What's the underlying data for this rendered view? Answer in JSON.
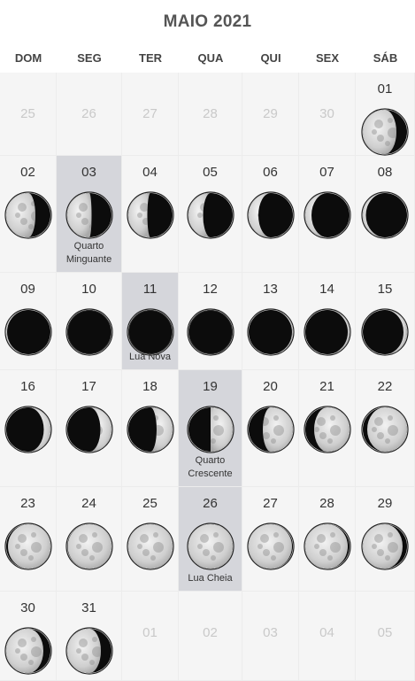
{
  "calendar": {
    "title": "MAIO 2021",
    "weekdays": [
      "DOM",
      "SEG",
      "TER",
      "QUA",
      "QUI",
      "SEX",
      "SÁB"
    ],
    "days": [
      {
        "day": "25",
        "other_month": true
      },
      {
        "day": "26",
        "other_month": true
      },
      {
        "day": "27",
        "other_month": true
      },
      {
        "day": "28",
        "other_month": true
      },
      {
        "day": "29",
        "other_month": true
      },
      {
        "day": "30",
        "other_month": true
      },
      {
        "day": "01",
        "illumination": 0.76,
        "waxing": false
      },
      {
        "day": "02",
        "illumination": 0.66,
        "waxing": false
      },
      {
        "day": "03",
        "illumination": 0.55,
        "waxing": false,
        "phase_label": "Quarto Minguante",
        "highlight": true
      },
      {
        "day": "04",
        "illumination": 0.43,
        "waxing": false
      },
      {
        "day": "05",
        "illumination": 0.33,
        "waxing": false
      },
      {
        "day": "06",
        "illumination": 0.22,
        "waxing": false
      },
      {
        "day": "07",
        "illumination": 0.14,
        "waxing": false
      },
      {
        "day": "08",
        "illumination": 0.07,
        "waxing": false
      },
      {
        "day": "09",
        "illumination": 0.02,
        "waxing": false
      },
      {
        "day": "10",
        "illumination": 0.0,
        "waxing": false
      },
      {
        "day": "11",
        "illumination": 0.0,
        "waxing": true,
        "phase_label": "Lua Nova",
        "highlight": true
      },
      {
        "day": "12",
        "illumination": 0.0,
        "waxing": true
      },
      {
        "day": "13",
        "illumination": 0.02,
        "waxing": true
      },
      {
        "day": "14",
        "illumination": 0.04,
        "waxing": true
      },
      {
        "day": "15",
        "illumination": 0.08,
        "waxing": true
      },
      {
        "day": "16",
        "illumination": 0.15,
        "waxing": true
      },
      {
        "day": "17",
        "illumination": 0.25,
        "waxing": true
      },
      {
        "day": "18",
        "illumination": 0.36,
        "waxing": true
      },
      {
        "day": "19",
        "illumination": 0.5,
        "waxing": true,
        "phase_label": "Quarto Crescente",
        "highlight": true
      },
      {
        "day": "20",
        "illumination": 0.68,
        "waxing": true
      },
      {
        "day": "21",
        "illumination": 0.8,
        "waxing": true
      },
      {
        "day": "22",
        "illumination": 0.9,
        "waxing": true
      },
      {
        "day": "23",
        "illumination": 0.96,
        "waxing": true
      },
      {
        "day": "24",
        "illumination": 0.99,
        "waxing": true
      },
      {
        "day": "25",
        "illumination": 1.0,
        "waxing": true
      },
      {
        "day": "26",
        "illumination": 1.0,
        "waxing": false,
        "phase_label": "Lua Cheia",
        "highlight": true
      },
      {
        "day": "27",
        "illumination": 0.98,
        "waxing": false
      },
      {
        "day": "28",
        "illumination": 0.96,
        "waxing": false
      },
      {
        "day": "29",
        "illumination": 0.9,
        "waxing": false
      },
      {
        "day": "30",
        "illumination": 0.84,
        "waxing": false
      },
      {
        "day": "31",
        "illumination": 0.76,
        "waxing": false
      },
      {
        "day": "01",
        "other_month": true
      },
      {
        "day": "02",
        "other_month": true
      },
      {
        "day": "03",
        "other_month": true
      },
      {
        "day": "04",
        "other_month": true
      },
      {
        "day": "05",
        "other_month": true
      }
    ]
  }
}
